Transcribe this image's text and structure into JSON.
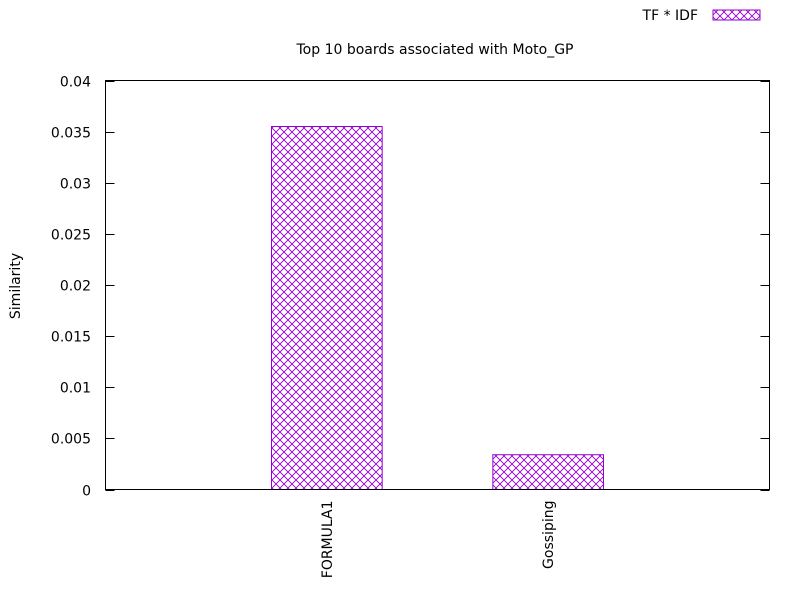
{
  "chart_data": {
    "type": "bar",
    "title": "Top 10 boards associated with Moto_GP",
    "xlabel": "",
    "ylabel": "Similarity",
    "categories": [
      "FORMULA1",
      "Gossiping"
    ],
    "series": [
      {
        "name": "TF * IDF",
        "values": [
          0.0355,
          0.0034
        ]
      }
    ],
    "ylim": [
      0,
      0.04
    ],
    "yticks": [
      0,
      0.005,
      0.01,
      0.015,
      0.02,
      0.025,
      0.03,
      0.035,
      0.04
    ],
    "ytick_labels": [
      "0",
      "0.005",
      "0.01",
      "0.015",
      "0.02",
      "0.025",
      "0.03",
      "0.035",
      "0.04"
    ],
    "grid": false,
    "legend_position": "top-right, outside plot",
    "bar_color": "#9400d3",
    "bar_pattern": "crosshatch"
  }
}
